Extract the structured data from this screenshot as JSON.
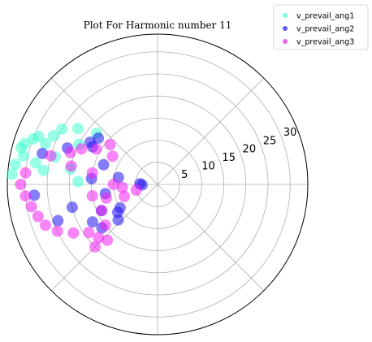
{
  "chart_data": {
    "type": "scatter",
    "projection": "polar",
    "title": "Plot For Harmonic number 11",
    "radial_ticks": [
      "5",
      "10",
      "15",
      "20",
      "25",
      "30"
    ],
    "radial_range": [
      0,
      34
    ],
    "angular_gridlines_deg": [
      0,
      45,
      90,
      135,
      180,
      225,
      270,
      315
    ],
    "angular_tick_labels": false,
    "grid": true,
    "legend_position": "top-right",
    "series": [
      {
        "name": "v_prevail_ang1",
        "color": "#40ffd0",
        "points": [
          {
            "theta": 168,
            "r": 31
          },
          {
            "theta": 165,
            "r": 32
          },
          {
            "theta": 163,
            "r": 31.5
          },
          {
            "theta": 160,
            "r": 30
          },
          {
            "theta": 158,
            "r": 29
          },
          {
            "theta": 172,
            "r": 32.5
          },
          {
            "theta": 176,
            "r": 33
          },
          {
            "theta": 170,
            "r": 28
          },
          {
            "theta": 155,
            "r": 26
          },
          {
            "theta": 150,
            "r": 25
          },
          {
            "theta": 145,
            "r": 22
          },
          {
            "theta": 160,
            "r": 27
          },
          {
            "theta": 140,
            "r": 18
          },
          {
            "theta": 153,
            "r": 20
          },
          {
            "theta": 173,
            "r": 26
          },
          {
            "theta": 165,
            "r": 24
          },
          {
            "theta": 170,
            "r": 20
          },
          {
            "theta": 178,
            "r": 18
          }
        ]
      },
      {
        "name": "v_prevail_ang2",
        "color": "#2010f0",
        "points": [
          {
            "theta": 150,
            "r": 17
          },
          {
            "theta": 148,
            "r": 18
          },
          {
            "theta": 142,
            "r": 17
          },
          {
            "theta": 182,
            "r": 3.5
          },
          {
            "theta": 178,
            "r": 4
          },
          {
            "theta": 212,
            "r": 10
          },
          {
            "theta": 215,
            "r": 11
          },
          {
            "theta": 222,
            "r": 12
          },
          {
            "theta": 210,
            "r": 17
          },
          {
            "theta": 218,
            "r": 16
          },
          {
            "theta": 195,
            "r": 20
          },
          {
            "theta": 200,
            "r": 24
          },
          {
            "theta": 165,
            "r": 27
          },
          {
            "theta": 158,
            "r": 22
          },
          {
            "theta": 190,
            "r": 12
          },
          {
            "theta": 175,
            "r": 15
          },
          {
            "theta": 185,
            "r": 28
          },
          {
            "theta": 205,
            "r": 14
          },
          {
            "theta": 170,
            "r": 9
          },
          {
            "theta": 160,
            "r": 13
          }
        ]
      },
      {
        "name": "v_prevail_ang3",
        "color": "#f020f0",
        "points": [
          {
            "theta": 175,
            "r": 30
          },
          {
            "theta": 180,
            "r": 31
          },
          {
            "theta": 185,
            "r": 30
          },
          {
            "theta": 190,
            "r": 29
          },
          {
            "theta": 195,
            "r": 28
          },
          {
            "theta": 200,
            "r": 27
          },
          {
            "theta": 205,
            "r": 25
          },
          {
            "theta": 210,
            "r": 22
          },
          {
            "theta": 215,
            "r": 19
          },
          {
            "theta": 218,
            "r": 15
          },
          {
            "theta": 222,
            "r": 18
          },
          {
            "theta": 225,
            "r": 20
          },
          {
            "theta": 228,
            "r": 17
          },
          {
            "theta": 200,
            "r": 8
          },
          {
            "theta": 195,
            "r": 5
          },
          {
            "theta": 185,
            "r": 8
          },
          {
            "theta": 170,
            "r": 15
          },
          {
            "theta": 168,
            "r": 20
          },
          {
            "theta": 165,
            "r": 25
          },
          {
            "theta": 160,
            "r": 21
          },
          {
            "theta": 155,
            "r": 19
          },
          {
            "theta": 150,
            "r": 16
          },
          {
            "theta": 148,
            "r": 12
          },
          {
            "theta": 140,
            "r": 14
          },
          {
            "theta": 180,
            "r": 10
          },
          {
            "theta": 190,
            "r": 15
          },
          {
            "theta": 195,
            "r": 12
          },
          {
            "theta": 205,
            "r": 14
          }
        ]
      }
    ]
  }
}
